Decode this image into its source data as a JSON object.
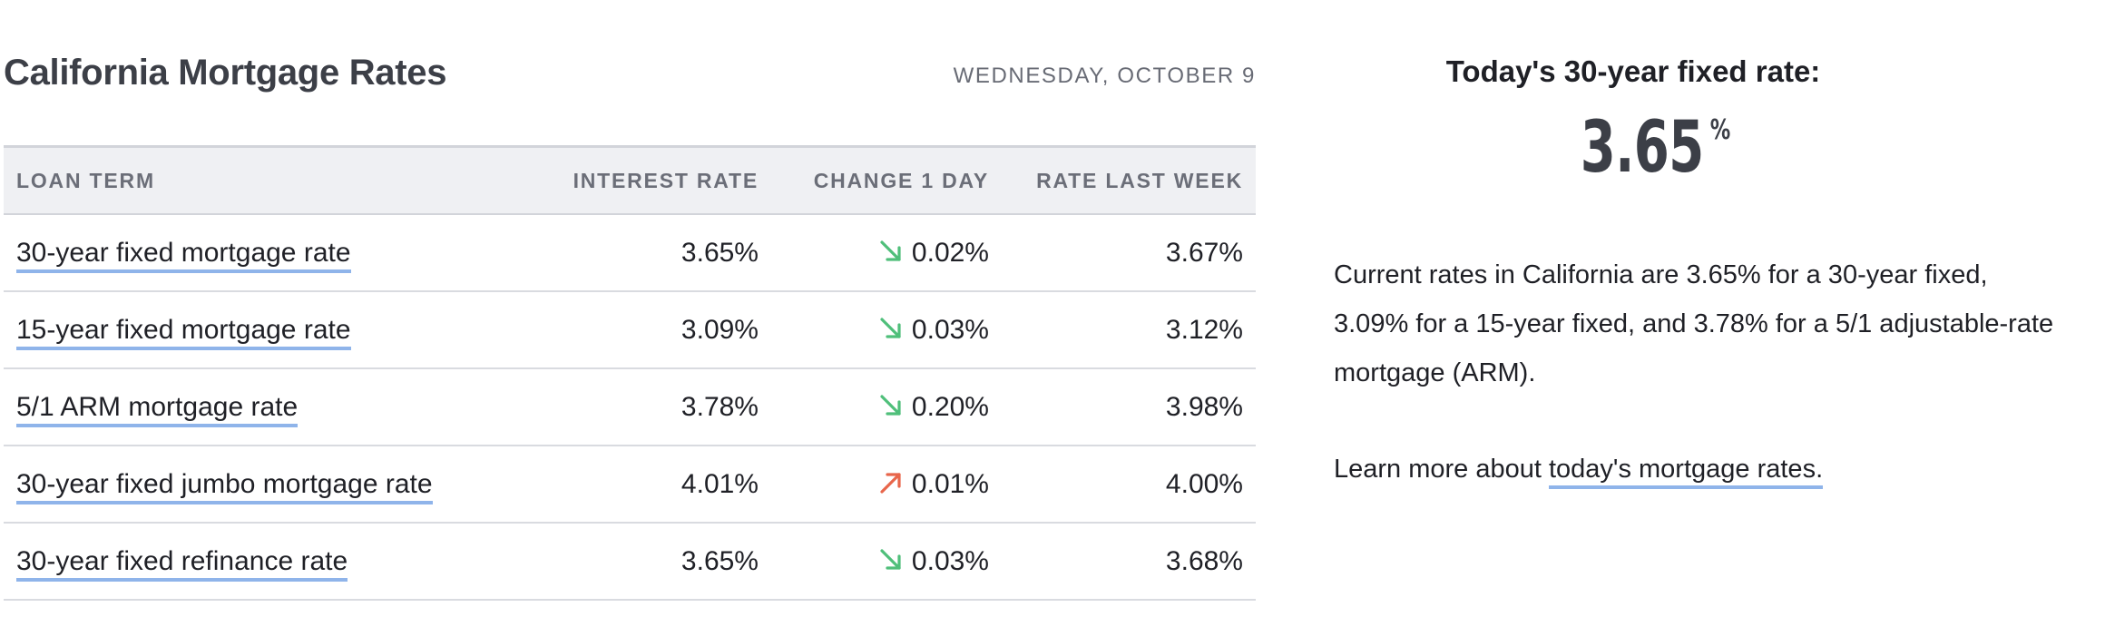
{
  "header": {
    "title": "California Mortgage Rates",
    "date": "WEDNESDAY, OCTOBER 9"
  },
  "table": {
    "columns": [
      "LOAN TERM",
      "INTEREST RATE",
      "CHANGE 1 DAY",
      "RATE LAST WEEK"
    ],
    "rows": [
      {
        "term": "30-year fixed mortgage rate",
        "rate": "3.65%",
        "change": "0.02%",
        "direction": "down",
        "last_week": "3.67%"
      },
      {
        "term": "15-year fixed mortgage rate",
        "rate": "3.09%",
        "change": "0.03%",
        "direction": "down",
        "last_week": "3.12%"
      },
      {
        "term": "5/1 ARM mortgage rate",
        "rate": "3.78%",
        "change": "0.20%",
        "direction": "down",
        "last_week": "3.98%"
      },
      {
        "term": "30-year fixed jumbo mortgage rate",
        "rate": "4.01%",
        "change": "0.01%",
        "direction": "up",
        "last_week": "4.00%"
      },
      {
        "term": "30-year fixed refinance rate",
        "rate": "3.65%",
        "change": "0.03%",
        "direction": "down",
        "last_week": "3.68%"
      }
    ]
  },
  "sidebar": {
    "heading": "Today's 30-year fixed rate:",
    "rate_value": "3.65",
    "rate_unit": "%",
    "summary": "Current rates in California are 3.65% for a 30-year fixed, 3.09% for a 15-year fixed, and 3.78% for a 5/1 adjustable-rate mortgage (ARM).",
    "learn_more_prefix": "Learn more about ",
    "learn_more_link": "today's mortgage rates."
  },
  "icons": {
    "down": "arrow-down-right-icon",
    "up": "arrow-up-right-icon"
  },
  "colors": {
    "down_arrow": "#4fbf7a",
    "up_arrow": "#e8664b",
    "link_underline": "#8fb4ea",
    "header_bg": "#eff0f3"
  }
}
